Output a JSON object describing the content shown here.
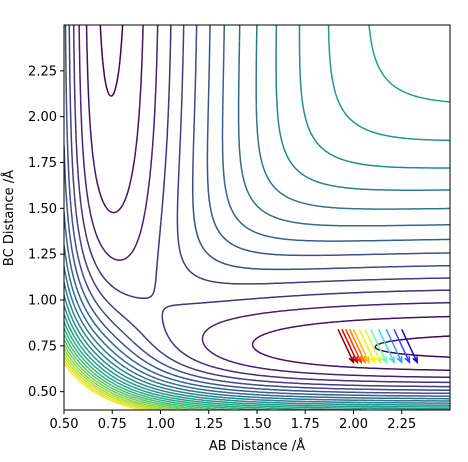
{
  "chart_data": {
    "type": "contour",
    "title": "",
    "xlabel": "AB Distance /Å",
    "ylabel": "BC Distance /Å",
    "xlim": [
      0.5,
      2.5
    ],
    "ylim": [
      0.4,
      2.5
    ],
    "xticks": [
      "0.50",
      "0.75",
      "1.00",
      "1.25",
      "1.50",
      "1.75",
      "2.00",
      "2.25"
    ],
    "yticks": [
      "0.50",
      "0.75",
      "1.00",
      "1.25",
      "1.50",
      "1.75",
      "2.00",
      "2.25"
    ],
    "colormap": "viridis",
    "grid": false,
    "legend": "none",
    "n_levels": 24,
    "trajectory_arrows": {
      "n": 12,
      "start_x": [
        1.92,
        1.94,
        1.96,
        1.98,
        2.0,
        2.03,
        2.06,
        2.09,
        2.13,
        2.17,
        2.21,
        2.25
      ],
      "end_x": [
        2.0,
        2.02,
        2.04,
        2.06,
        2.08,
        2.11,
        2.14,
        2.17,
        2.21,
        2.25,
        2.29,
        2.33
      ],
      "y_top": 0.84,
      "y_bottom": 0.66,
      "colors": [
        "#8b0000",
        "#cc0000",
        "#ff3300",
        "#ff7700",
        "#ffbb00",
        "#ffee00",
        "#ccff33",
        "#66ffaa",
        "#33ddee",
        "#3399ff",
        "#3344ff",
        "#2200cc"
      ]
    }
  }
}
